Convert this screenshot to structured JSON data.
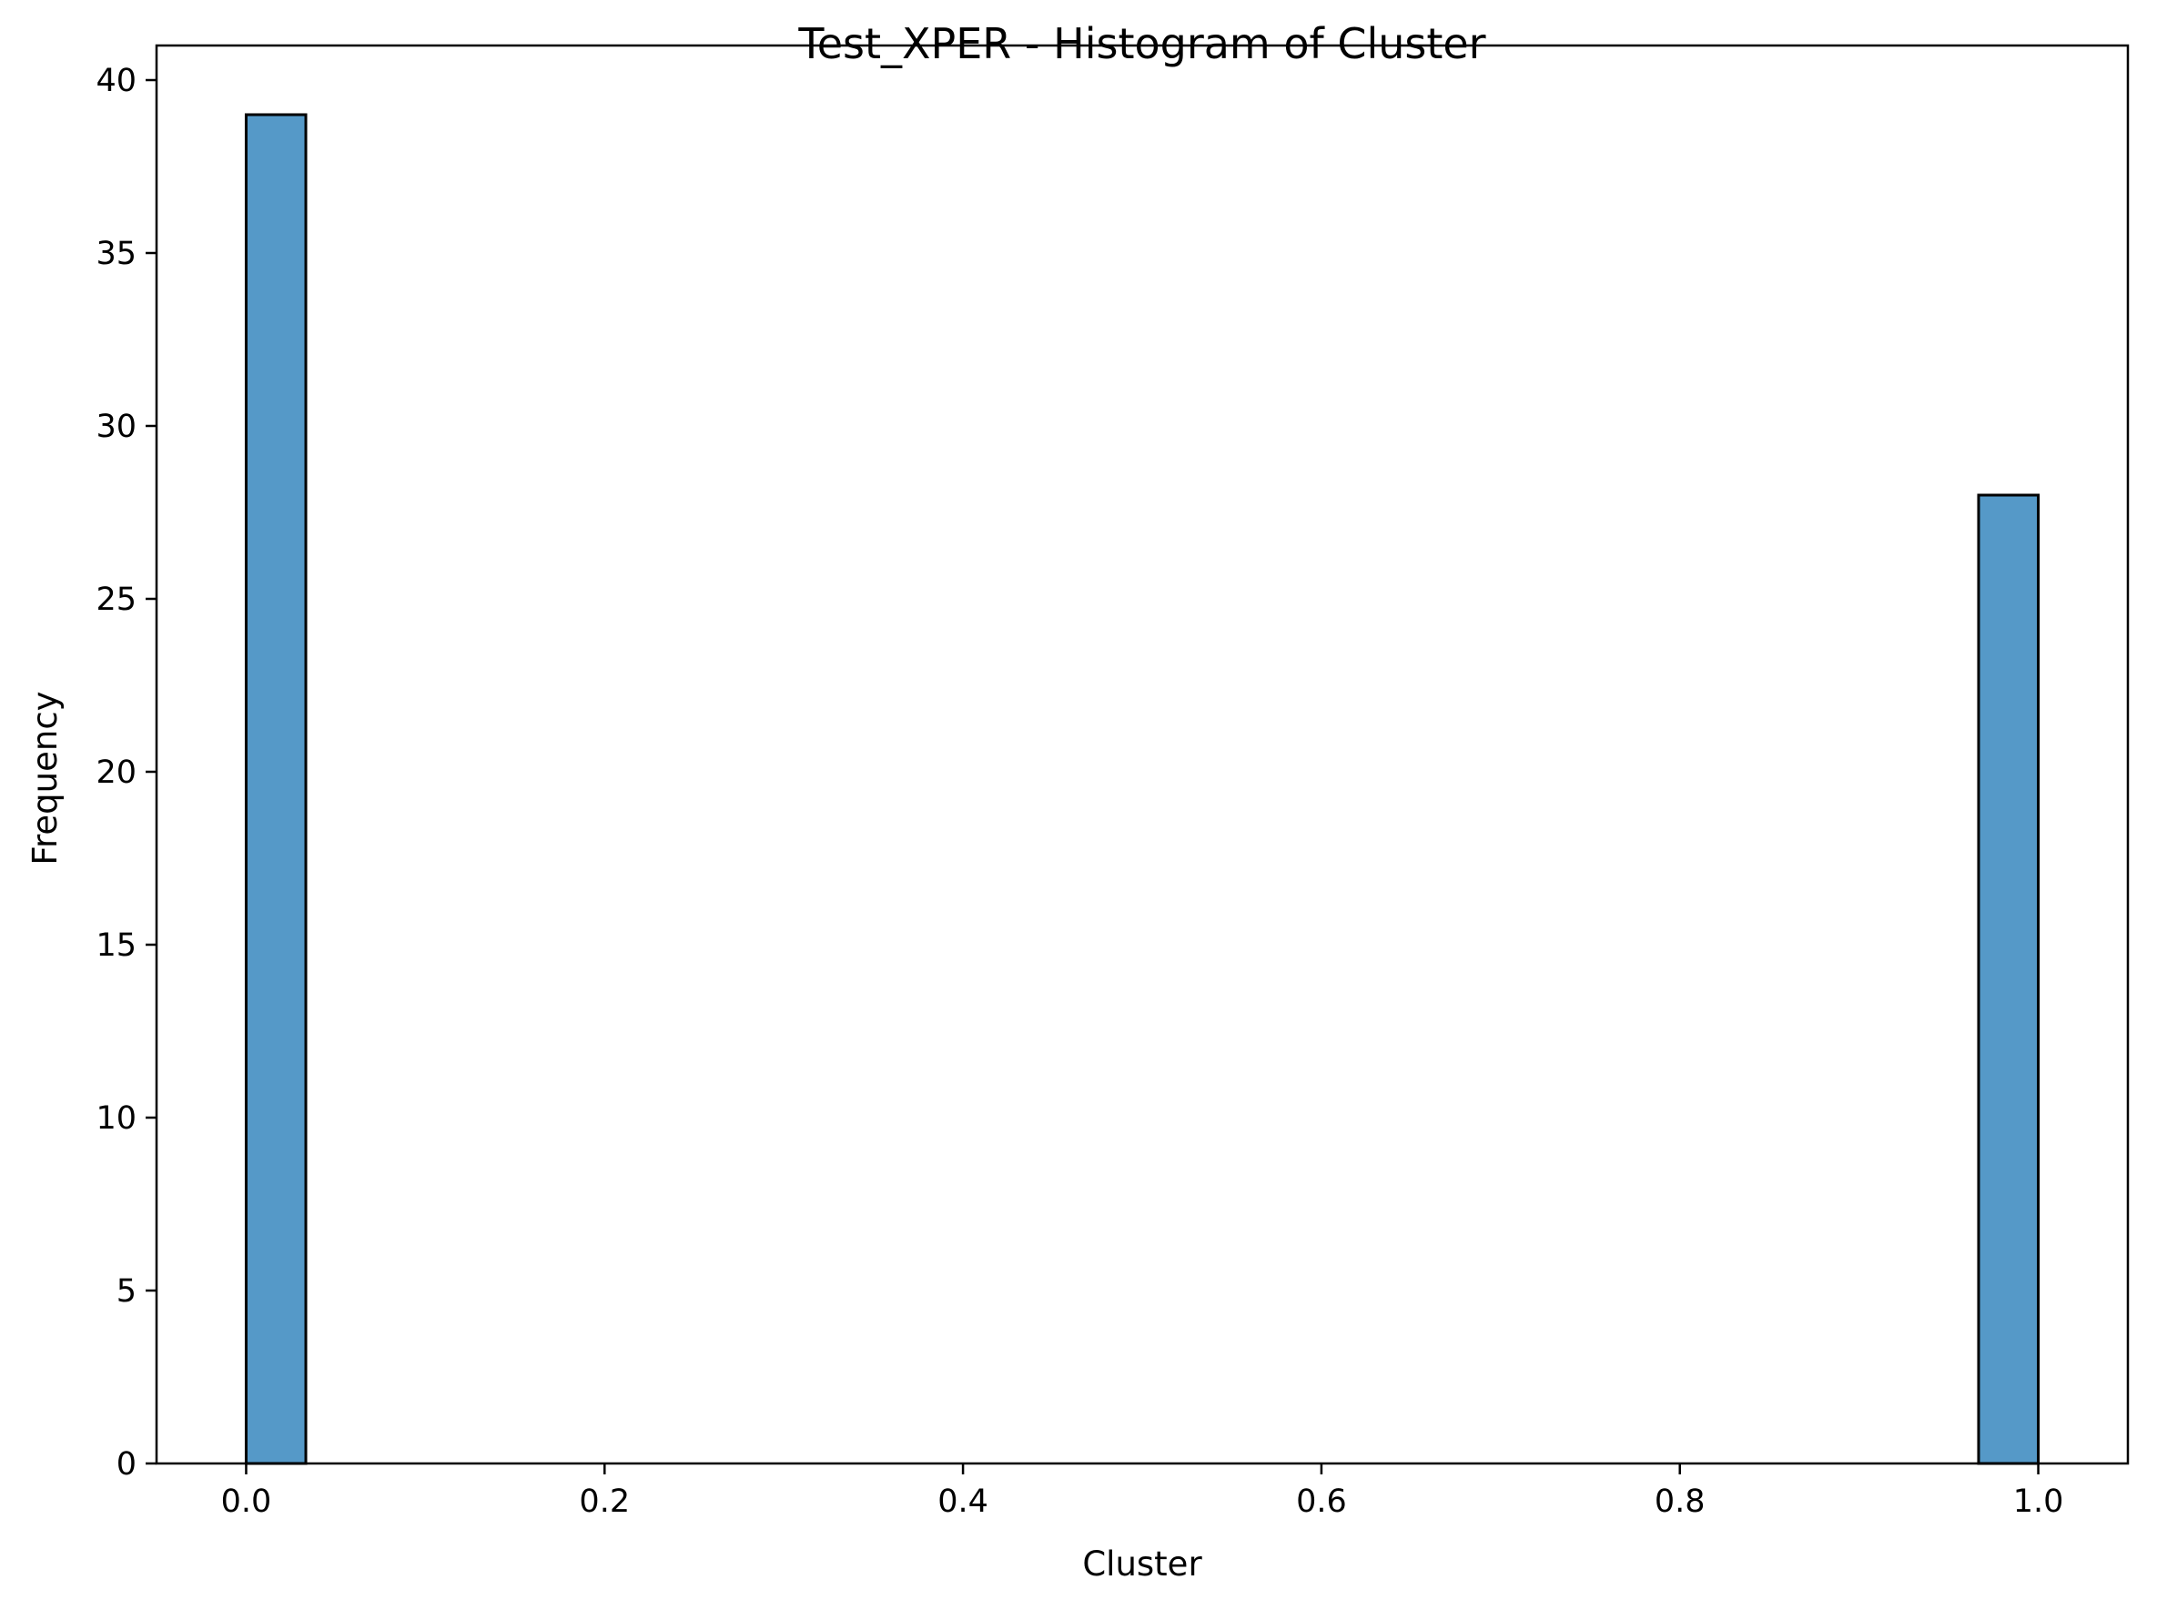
{
  "chart_data": {
    "type": "bar",
    "title": "Test_XPER - Histogram of Cluster",
    "xlabel": "Cluster",
    "ylabel": "Frequency",
    "xlim": [
      -0.05,
      1.05
    ],
    "ylim": [
      0,
      41
    ],
    "bin_width": 0.0333,
    "bins": [
      {
        "x0": 0.0,
        "x1": 0.0333,
        "count": 39
      },
      {
        "x0": 0.9667,
        "x1": 1.0,
        "count": 28
      }
    ],
    "x_ticks": [
      {
        "value": 0.0,
        "label": "0.0"
      },
      {
        "value": 0.2,
        "label": "0.2"
      },
      {
        "value": 0.4,
        "label": "0.4"
      },
      {
        "value": 0.6,
        "label": "0.6"
      },
      {
        "value": 0.8,
        "label": "0.8"
      },
      {
        "value": 1.0,
        "label": "1.0"
      }
    ],
    "y_ticks": [
      {
        "value": 0,
        "label": "0"
      },
      {
        "value": 5,
        "label": "5"
      },
      {
        "value": 10,
        "label": "10"
      },
      {
        "value": 15,
        "label": "15"
      },
      {
        "value": 20,
        "label": "20"
      },
      {
        "value": 25,
        "label": "25"
      },
      {
        "value": 30,
        "label": "30"
      },
      {
        "value": 35,
        "label": "35"
      },
      {
        "value": 40,
        "label": "40"
      }
    ],
    "grid": false,
    "bar_color": "#5599c8",
    "edge_color": "#000000"
  }
}
